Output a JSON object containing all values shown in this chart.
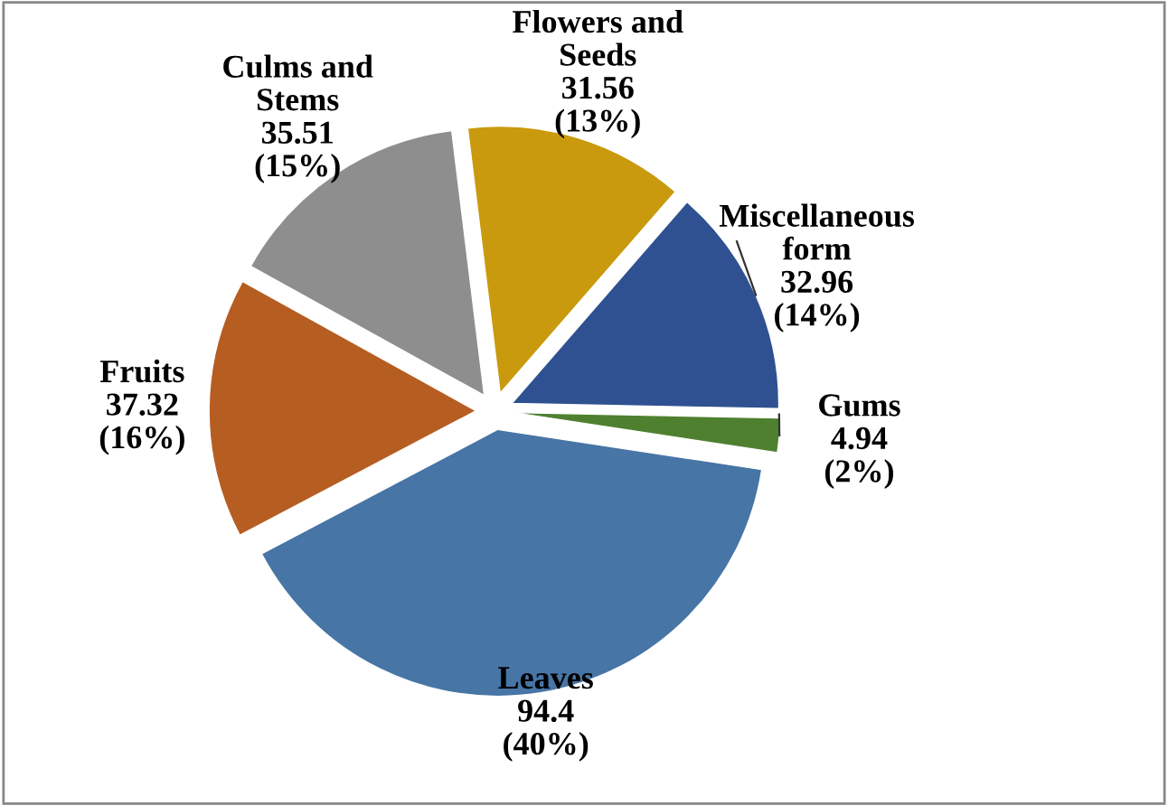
{
  "chart_data": {
    "type": "pie",
    "categories": [
      "Flowers and\nSeeds",
      "Miscellaneous\nform",
      "Gums",
      "Leaves",
      "Fruits",
      "Culms and\nStems"
    ],
    "values": [
      31.56,
      32.96,
      4.94,
      94.4,
      37.32,
      35.51
    ],
    "value_labels": [
      "31.56\n(13%)",
      "32.96\n(14%)",
      "4.94\n(2%)",
      "94.4\n(40%)",
      "37.32\n(16%)",
      "35.51\n(15%)"
    ],
    "colors": [
      "#c99a0e",
      "#2f5191",
      "#4f8030",
      "#4775a5",
      "#b65d22",
      "#8e8e8e"
    ]
  }
}
